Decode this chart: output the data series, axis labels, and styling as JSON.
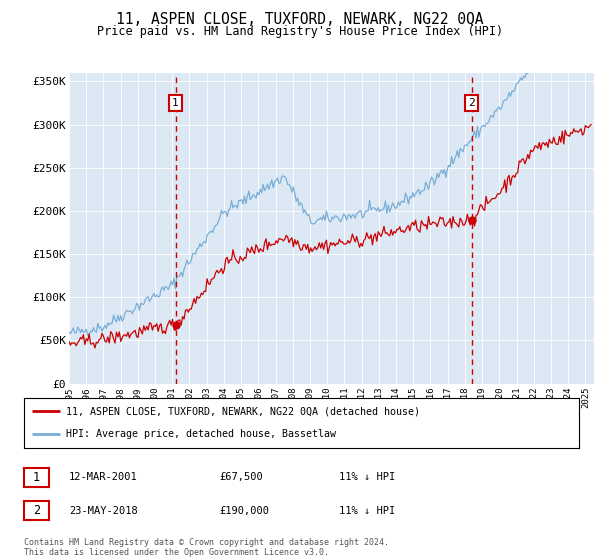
{
  "title": "11, ASPEN CLOSE, TUXFORD, NEWARK, NG22 0QA",
  "subtitle": "Price paid vs. HM Land Registry's House Price Index (HPI)",
  "background_color": "#dce9f5",
  "plot_bg_color": "#dce9f5",
  "red_line_color": "#cc0000",
  "blue_line_color": "#7aaed6",
  "marker1_date_year": 2001.19,
  "marker1_value": 67500,
  "marker2_date_year": 2018.39,
  "marker2_value": 190000,
  "marker1_label": "12-MAR-2001",
  "marker2_label": "23-MAY-2018",
  "marker1_price": "£67,500",
  "marker2_price": "£190,000",
  "marker1_hpi": "11% ↓ HPI",
  "marker2_hpi": "11% ↓ HPI",
  "ylim_min": 0,
  "ylim_max": 360000,
  "xlim_min": 1995.0,
  "xlim_max": 2025.5,
  "legend_line1": "11, ASPEN CLOSE, TUXFORD, NEWARK, NG22 0QA (detached house)",
  "legend_line2": "HPI: Average price, detached house, Bassetlaw",
  "footer": "Contains HM Land Registry data © Crown copyright and database right 2024.\nThis data is licensed under the Open Government Licence v3.0.",
  "yticks": [
    0,
    50000,
    100000,
    150000,
    200000,
    250000,
    300000,
    350000
  ],
  "ytick_labels": [
    "£0",
    "£50K",
    "£100K",
    "£150K",
    "£200K",
    "£250K",
    "£300K",
    "£350K"
  ]
}
